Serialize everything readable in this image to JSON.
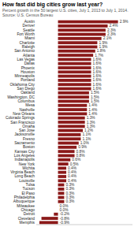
{
  "chart_data": {
    "type": "bar",
    "orientation": "horizontal",
    "title": "How fast did big cities grow last year?",
    "subtitle": "Percent growth in the 50 largest U.S. cities, July 1, 2013 to July 1, 2014.",
    "source": "Source: U.S. Census Bureau",
    "categories": [
      "Austin",
      "Denver",
      "Seattle",
      "Fort Worth",
      "Miami",
      "Charlotte",
      "Raleigh",
      "San Antonio",
      "Atlanta",
      "Las Vegas",
      "Dallas",
      "Phoenix",
      "Houston",
      "Minneapolis",
      "Portland",
      "Oklahoma City",
      "San Diego",
      "Oakland",
      "Washington, DC",
      "Columbus",
      "Mesa",
      "Nashville",
      "New Orleans",
      "Colorado Springs",
      "San Francisco",
      "Omaha",
      "San Jose",
      "Jacksonville",
      "Fresno",
      "Sacramento",
      "Boston",
      "Kansas City",
      "Los Angeles",
      "Indianapolis",
      "New York",
      "Wichita",
      "Virginia Beach",
      "Long Beach",
      "Louisville",
      "Tulsa",
      "Tucson",
      "El Paso",
      "Philadelphia",
      "Albuquerque",
      "Milwaukee",
      "Chicago",
      "Detroit",
      "Cleveland",
      "Memphis"
    ],
    "values": [
      2.9,
      2.4,
      2.3,
      2.3,
      2.1,
      1.9,
      1.9,
      1.8,
      1.7,
      1.6,
      1.6,
      1.6,
      1.6,
      1.6,
      1.6,
      1.6,
      1.6,
      1.5,
      1.5,
      1.5,
      1.4,
      1.4,
      1.4,
      1.3,
      1.3,
      1.3,
      1.2,
      1.1,
      1.1,
      1.0,
      0.9,
      0.8,
      0.8,
      0.6,
      0.5,
      0.4,
      0.4,
      0.4,
      0.4,
      0.3,
      0.3,
      0.3,
      0.3,
      0.3,
      0.0,
      0.0,
      -0.2,
      -0.8,
      -0.9
    ],
    "value_labels": [
      "2.9%",
      "2.4%",
      "2.3%",
      "2.3%",
      "2.1%",
      "1.9%",
      "1.9%",
      "1.8%",
      "1.7%",
      "1.6%",
      "1.6%",
      "1.6%",
      "1.6%",
      "1.6%",
      "1.6%",
      "1.6%",
      "1.6%",
      "1.5%",
      "1.5%",
      "1.5%",
      "1.4%",
      "1.4%",
      "1.4%",
      "1.3%",
      "1.3%",
      "1.3%",
      "1.2%",
      "1.1%",
      "1.1%",
      "1.0%",
      "0.9%",
      "0.8%",
      "0.8%",
      "0.6%",
      "0.5%",
      "0.4%",
      "0.4%",
      "0.4%",
      "0.4%",
      "0.3%",
      "0.3%",
      "0.3%",
      "0.3%",
      "0.3%",
      "0.0%",
      "0.0%",
      "-0.2%",
      "-0.8%",
      "-0.9%"
    ],
    "data_labels": true,
    "color": "#8B1A1A",
    "xlim": [
      -1.05,
      3.6
    ],
    "tick_labels": "y",
    "grid": false
  }
}
